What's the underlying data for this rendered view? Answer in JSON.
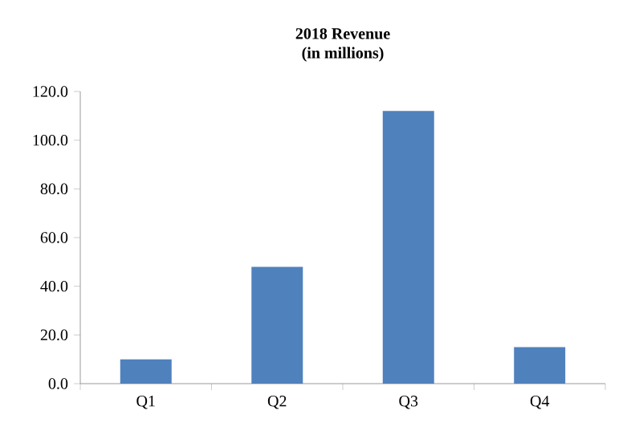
{
  "chart_data": {
    "type": "bar",
    "title": "2018 Revenue",
    "subtitle": "(in millions)",
    "categories": [
      "Q1",
      "Q2",
      "Q3",
      "Q4"
    ],
    "values": [
      10,
      48,
      112,
      15
    ],
    "color": "#4f81bd",
    "ylim": [
      0,
      120
    ],
    "yticks": [
      {
        "value": 0,
        "label": "0.0"
      },
      {
        "value": 20,
        "label": "20.0"
      },
      {
        "value": 40,
        "label": "40.0"
      },
      {
        "value": 60,
        "label": "60.0"
      },
      {
        "value": 80,
        "label": "80.0"
      },
      {
        "value": 100,
        "label": "100.0"
      },
      {
        "value": 120,
        "label": "120.0"
      }
    ],
    "grid": false
  }
}
